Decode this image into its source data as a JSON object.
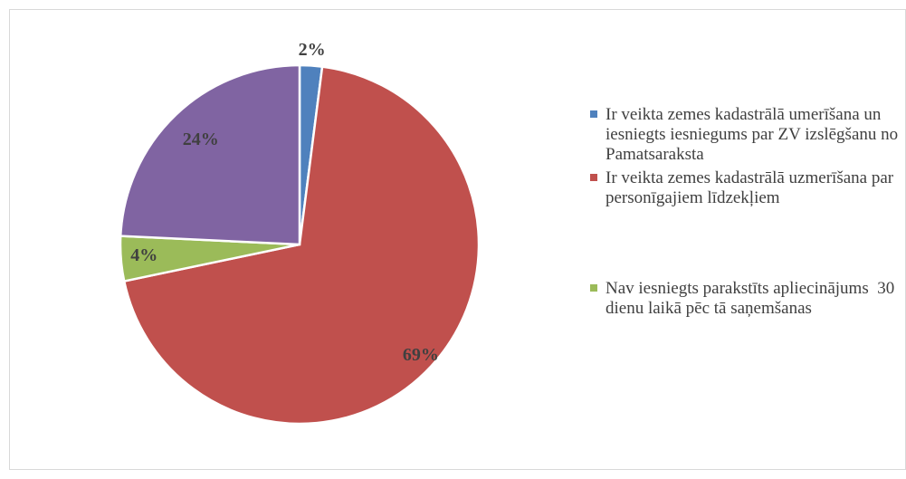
{
  "chart_data": {
    "type": "pie",
    "categories": [
      "Ir veikta zemes kadastrālā umerīšana un iesniegts iesniegums par ZV izslēgšanu no Pamatsaraksta",
      "Ir veikta zemes kadastrālā uzmerīšana par personīgajiem līdzekļiem",
      "Nav iesniegts parakstīts apliecinājums  30 dienu laikā pēc tā saņemšanas",
      null
    ],
    "values": [
      2,
      69,
      4,
      24
    ],
    "value_labels": [
      "2%",
      "69%",
      "4%",
      "24%"
    ],
    "colors": [
      "#4f81bd",
      "#c0504d",
      "#9bbb59",
      "#8064a2"
    ],
    "legend": "right"
  }
}
